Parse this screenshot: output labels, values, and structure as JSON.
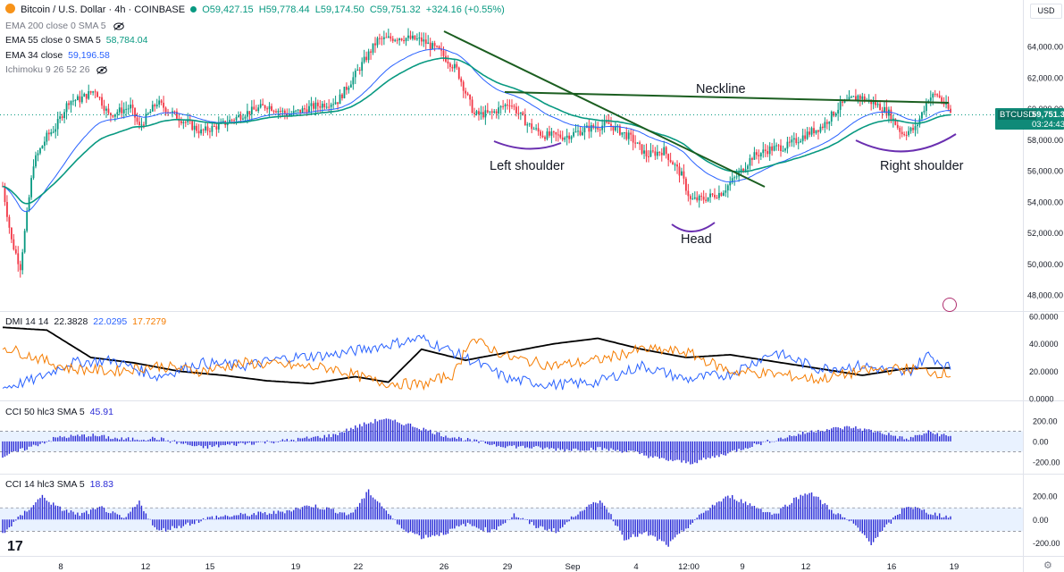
{
  "header": {
    "symbol_line": "Bitcoin / U.S. Dollar · 4h · COINBASE",
    "ohlc": {
      "o": "O59,427.15",
      "h": "H59,778.44",
      "l": "L59,174.50",
      "c": "C59,751.32",
      "change": "+324.16 (+0.55%)"
    },
    "indicators": [
      {
        "label": "EMA 200 close 0 SMA 5",
        "value": "",
        "color": "#787b86",
        "muted": true
      },
      {
        "label": "EMA 55 close 0 SMA 5",
        "value": "58,784.04",
        "color": "#089981",
        "muted": false
      },
      {
        "label": "EMA 34 close",
        "value": "59,196.58",
        "color": "#2962ff",
        "muted": false
      },
      {
        "label": "Ichimoku 9 26 52 26",
        "value": "",
        "color": "#787b86",
        "muted": true
      }
    ],
    "currency": "USD"
  },
  "price_tag": {
    "symbol": "BTCUSD",
    "price": "59,751.32",
    "countdown": "03:24:43"
  },
  "annotations": {
    "neckline": "Neckline",
    "left_shoulder": "Left shoulder",
    "head": "Head",
    "right_shoulder": "Right shoulder"
  },
  "dmi_legend": {
    "label": "DMI 14 14",
    "adx": "22.3828",
    "plus_di": "22.0295",
    "minus_di": "17.7279"
  },
  "cci50_legend": {
    "label": "CCI 50 hlc3 SMA 5",
    "value": "45.91"
  },
  "cci14_legend": {
    "label": "CCI 14 hlc3 SMA 5",
    "value": "18.83"
  },
  "colors": {
    "up": "#089981",
    "down": "#f23645",
    "ema34": "#2962ff",
    "ema55": "#089981",
    "trend": "#1b5e20",
    "cci": "#2b2bd6",
    "adx": "#000000",
    "plus_di": "#2962ff",
    "minus_di": "#f57c00",
    "arc": "#6a2fb0"
  },
  "chart_data": [
    {
      "type": "candlestick",
      "title": "Bitcoin / U.S. Dollar · 4h · COINBASE",
      "x_ticks": [
        "8",
        "12",
        "15",
        "19",
        "22",
        "26",
        "29",
        "Sep",
        "4",
        "12:00",
        "9",
        "12",
        "16",
        "19"
      ],
      "y_ticks": [
        "48,000.00",
        "50,000.00",
        "52,000.00",
        "54,000.00",
        "56,000.00",
        "58,000.00",
        "60,000.00",
        "62,000.00",
        "64,000.00"
      ],
      "ylim": [
        47300,
        65300
      ],
      "last_price": 59751.32,
      "anchors": [
        [
          0,
          55000
        ],
        [
          4,
          51500
        ],
        [
          8,
          49800
        ],
        [
          14,
          56500
        ],
        [
          20,
          58200
        ],
        [
          24,
          58800
        ],
        [
          30,
          60500
        ],
        [
          35,
          60600
        ],
        [
          42,
          61200
        ],
        [
          48,
          59600
        ],
        [
          58,
          60100
        ],
        [
          62,
          58800
        ],
        [
          70,
          60400
        ],
        [
          80,
          59400
        ],
        [
          90,
          58500
        ],
        [
          100,
          59000
        ],
        [
          110,
          59700
        ],
        [
          120,
          60200
        ],
        [
          130,
          59600
        ],
        [
          140,
          60100
        ],
        [
          152,
          60500
        ],
        [
          160,
          62200
        ],
        [
          170,
          64400
        ],
        [
          180,
          64600
        ],
        [
          190,
          64400
        ],
        [
          198,
          63700
        ],
        [
          206,
          62500
        ],
        [
          214,
          59600
        ],
        [
          222,
          59700
        ],
        [
          230,
          60400
        ],
        [
          238,
          59000
        ],
        [
          245,
          58300
        ],
        [
          255,
          58200
        ],
        [
          265,
          58700
        ],
        [
          275,
          59000
        ],
        [
          285,
          58100
        ],
        [
          292,
          57000
        ],
        [
          300,
          57300
        ],
        [
          308,
          55700
        ],
        [
          312,
          54100
        ],
        [
          318,
          54200
        ],
        [
          326,
          54600
        ],
        [
          334,
          55800
        ],
        [
          340,
          56900
        ],
        [
          348,
          57400
        ],
        [
          356,
          57600
        ],
        [
          364,
          58300
        ],
        [
          372,
          58900
        ],
        [
          380,
          60200
        ],
        [
          388,
          60800
        ],
        [
          396,
          60300
        ],
        [
          402,
          59700
        ],
        [
          408,
          58400
        ],
        [
          414,
          58700
        ],
        [
          420,
          60700
        ],
        [
          424,
          60900
        ],
        [
          430,
          59751
        ]
      ],
      "ema34_note": "EMA 34 close",
      "ema55_note": "EMA 55 close 0 SMA 5"
    },
    {
      "type": "line",
      "title": "DMI 14 14",
      "y_ticks": [
        "0.0000",
        "20.0000",
        "40.0000",
        "60.0000"
      ],
      "ylim": [
        0,
        60
      ],
      "series": [
        {
          "name": "ADX",
          "anchors": [
            [
              0,
              52
            ],
            [
              20,
              50
            ],
            [
              40,
              30
            ],
            [
              60,
              26
            ],
            [
              80,
              20
            ],
            [
              100,
              17
            ],
            [
              120,
              13
            ],
            [
              140,
              11
            ],
            [
              160,
              16
            ],
            [
              175,
              12
            ],
            [
              190,
              36
            ],
            [
              210,
              28
            ],
            [
              230,
              34
            ],
            [
              250,
              40
            ],
            [
              270,
              44
            ],
            [
              290,
              36
            ],
            [
              310,
              30
            ],
            [
              330,
              32
            ],
            [
              350,
              27
            ],
            [
              370,
              22
            ],
            [
              390,
              17
            ],
            [
              410,
              22
            ],
            [
              430,
              22.38
            ]
          ]
        },
        {
          "name": "+DI",
          "anchors": [
            [
              0,
              8
            ],
            [
              15,
              14
            ],
            [
              30,
              26
            ],
            [
              50,
              28
            ],
            [
              70,
              16
            ],
            [
              90,
              26
            ],
            [
              110,
              24
            ],
            [
              130,
              30
            ],
            [
              150,
              32
            ],
            [
              170,
              38
            ],
            [
              190,
              44
            ],
            [
              210,
              30
            ],
            [
              230,
              14
            ],
            [
              250,
              10
            ],
            [
              270,
              12
            ],
            [
              290,
              24
            ],
            [
              310,
              14
            ],
            [
              330,
              18
            ],
            [
              350,
              34
            ],
            [
              370,
              22
            ],
            [
              390,
              24
            ],
            [
              410,
              18
            ],
            [
              420,
              32
            ],
            [
              430,
              22.03
            ]
          ]
        },
        {
          "name": "-DI",
          "anchors": [
            [
              0,
              38
            ],
            [
              15,
              30
            ],
            [
              30,
              22
            ],
            [
              50,
              20
            ],
            [
              70,
              24
            ],
            [
              90,
              20
            ],
            [
              110,
              26
            ],
            [
              130,
              24
            ],
            [
              150,
              22
            ],
            [
              170,
              12
            ],
            [
              190,
              10
            ],
            [
              205,
              18
            ],
            [
              212,
              44
            ],
            [
              230,
              30
            ],
            [
              250,
              24
            ],
            [
              270,
              28
            ],
            [
              290,
              36
            ],
            [
              310,
              34
            ],
            [
              330,
              20
            ],
            [
              350,
              18
            ],
            [
              370,
              14
            ],
            [
              390,
              20
            ],
            [
              410,
              22
            ],
            [
              430,
              17.73
            ]
          ]
        }
      ]
    },
    {
      "type": "bar",
      "title": "CCI 50 hlc3 SMA 5",
      "y_ticks": [
        "200.00",
        "0.00",
        "-200.00"
      ],
      "ylim": [
        -280,
        330
      ],
      "band": [
        -100,
        100
      ],
      "anchors": [
        [
          0,
          -150
        ],
        [
          12,
          -60
        ],
        [
          25,
          40
        ],
        [
          40,
          60
        ],
        [
          55,
          20
        ],
        [
          70,
          30
        ],
        [
          90,
          -60
        ],
        [
          110,
          -20
        ],
        [
          130,
          10
        ],
        [
          150,
          60
        ],
        [
          160,
          140
        ],
        [
          172,
          220
        ],
        [
          185,
          160
        ],
        [
          200,
          60
        ],
        [
          212,
          10
        ],
        [
          225,
          -40
        ],
        [
          240,
          -60
        ],
        [
          255,
          -80
        ],
        [
          270,
          -70
        ],
        [
          285,
          -100
        ],
        [
          298,
          -170
        ],
        [
          312,
          -210
        ],
        [
          325,
          -140
        ],
        [
          340,
          -40
        ],
        [
          355,
          40
        ],
        [
          370,
          110
        ],
        [
          385,
          140
        ],
        [
          400,
          80
        ],
        [
          410,
          20
        ],
        [
          420,
          90
        ],
        [
          430,
          45.91
        ]
      ]
    },
    {
      "type": "bar",
      "title": "CCI 14 hlc3 SMA 5",
      "y_ticks": [
        "200.00",
        "0.00",
        "-200.00"
      ],
      "ylim": [
        -280,
        330
      ],
      "band": [
        -100,
        100
      ],
      "anchors": [
        [
          0,
          -120
        ],
        [
          10,
          60
        ],
        [
          18,
          200
        ],
        [
          25,
          100
        ],
        [
          35,
          40
        ],
        [
          45,
          100
        ],
        [
          55,
          0
        ],
        [
          62,
          150
        ],
        [
          70,
          -100
        ],
        [
          82,
          -50
        ],
        [
          95,
          20
        ],
        [
          110,
          40
        ],
        [
          125,
          60
        ],
        [
          140,
          120
        ],
        [
          150,
          80
        ],
        [
          158,
          40
        ],
        [
          166,
          240
        ],
        [
          172,
          120
        ],
        [
          180,
          -60
        ],
        [
          190,
          -150
        ],
        [
          200,
          -120
        ],
        [
          210,
          -40
        ],
        [
          222,
          -100
        ],
        [
          232,
          40
        ],
        [
          242,
          -60
        ],
        [
          252,
          -100
        ],
        [
          262,
          80
        ],
        [
          272,
          160
        ],
        [
          282,
          -160
        ],
        [
          292,
          -120
        ],
        [
          302,
          -220
        ],
        [
          312,
          -40
        ],
        [
          322,
          120
        ],
        [
          330,
          200
        ],
        [
          340,
          120
        ],
        [
          350,
          40
        ],
        [
          358,
          160
        ],
        [
          366,
          240
        ],
        [
          376,
          80
        ],
        [
          386,
          -40
        ],
        [
          394,
          -200
        ],
        [
          402,
          -40
        ],
        [
          410,
          120
        ],
        [
          420,
          60
        ],
        [
          430,
          18.83
        ]
      ]
    }
  ]
}
